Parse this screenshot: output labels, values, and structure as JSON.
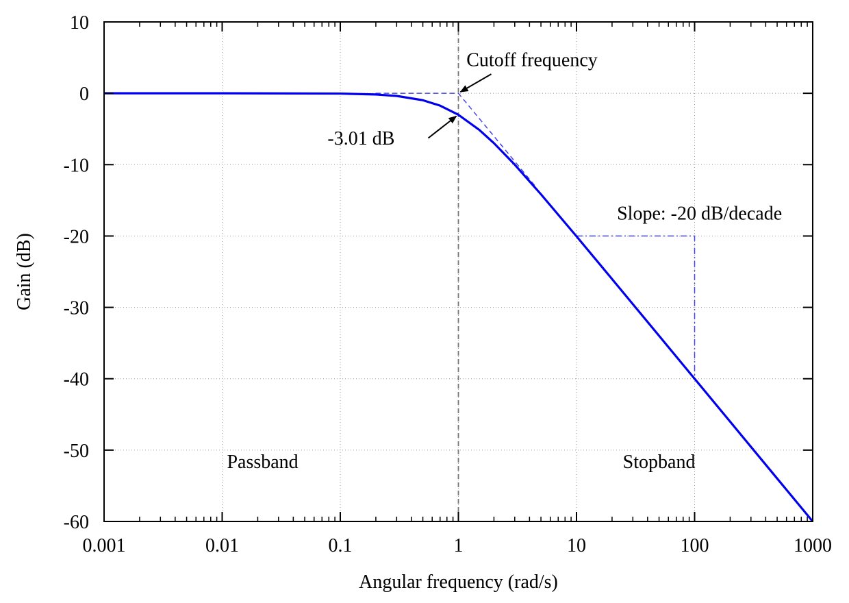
{
  "chart_data": {
    "type": "line",
    "title": "",
    "xlabel": "Angular frequency (rad/s)",
    "ylabel": "Gain (dB)",
    "xscale": "log",
    "xlim": [
      0.001,
      1000
    ],
    "ylim": [
      -60,
      10
    ],
    "grid": true,
    "x_ticks": [
      0.001,
      0.01,
      0.1,
      1,
      10,
      100,
      1000
    ],
    "x_tick_labels": [
      "0.001",
      "0.01",
      "0.1",
      "1",
      "10",
      "100",
      "1000"
    ],
    "y_ticks": [
      10,
      0,
      -10,
      -20,
      -30,
      -40,
      -50,
      -60
    ],
    "y_tick_labels": [
      "10",
      "0",
      "-10",
      "-20",
      "-30",
      "-40",
      "-50",
      "-60"
    ],
    "series": [
      {
        "name": "",
        "style": "solid",
        "color": "#0000ee",
        "x": [
          0.001,
          0.01,
          0.1,
          0.2,
          0.3,
          0.5,
          0.7,
          1,
          1.5,
          2,
          3,
          5,
          10,
          20,
          50,
          100,
          200,
          500,
          1000
        ],
        "y": [
          0,
          0,
          -0.04,
          -0.17,
          -0.37,
          -0.97,
          -1.73,
          -3.01,
          -5.12,
          -6.99,
          -10.0,
          -14.15,
          -20.04,
          -26.03,
          -33.98,
          -40.0,
          -46.02,
          -53.98,
          -60.0
        ]
      }
    ],
    "asymptote": {
      "color": "#4444ee",
      "x": [
        0.2,
        1,
        4.5
      ],
      "y": [
        0,
        0,
        -13.06
      ]
    },
    "slope_guide": {
      "color": "#4444ee",
      "x": [
        10,
        100,
        100
      ],
      "y": [
        -20,
        -20,
        -40
      ]
    },
    "cutoff_line": {
      "x": 1,
      "color": "#777777"
    },
    "annotations": [
      {
        "text": "Cutoff frequency",
        "x": 4.2,
        "y": 3.8,
        "anchor": "middle",
        "arrow_to": [
          1,
          0
        ]
      },
      {
        "text": "-3.01 dB",
        "x": 0.15,
        "y": -7.2,
        "anchor": "middle",
        "arrow_to": [
          1,
          -3.01
        ]
      },
      {
        "text": "Slope: -20 dB/decade",
        "x": 110,
        "y": -17.7,
        "anchor": "middle"
      },
      {
        "text": "Passband",
        "x": 0.022,
        "y": -52.5,
        "anchor": "middle"
      },
      {
        "text": "Stopband",
        "x": 50,
        "y": -52.5,
        "anchor": "middle"
      }
    ]
  }
}
